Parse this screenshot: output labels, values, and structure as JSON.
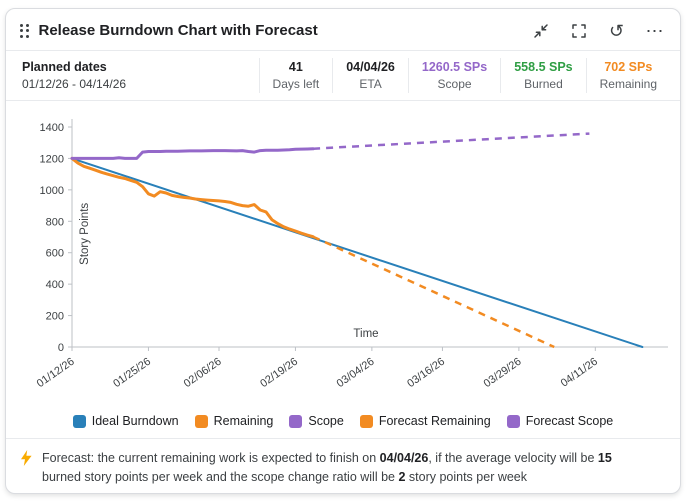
{
  "header": {
    "title": "Release Burndown Chart with Forecast"
  },
  "toolbar": {
    "refresh_glyph": "↺",
    "more_glyph": "⋯",
    "icons": [
      "drag-handle-icon",
      "collapse-icon",
      "fullscreen-icon",
      "refresh-icon",
      "more-icon"
    ]
  },
  "stats": {
    "planned_label": "Planned dates",
    "planned_range": "01/12/26 - 04/14/26",
    "items": [
      {
        "value": "41",
        "label": "Days left",
        "color": "#202124"
      },
      {
        "value": "04/04/26",
        "label": "ETA",
        "color": "#202124"
      },
      {
        "value": "1260.5 SPs",
        "label": "Scope",
        "color": "#9468c9"
      },
      {
        "value": "558.5 SPs",
        "label": "Burned",
        "color": "#2f9e44"
      },
      {
        "value": "702 SPs",
        "label": "Remaining",
        "color": "#f28b22"
      }
    ]
  },
  "chart_data": {
    "type": "line",
    "title": "Release Burndown Chart with Forecast",
    "xlabel": "Time",
    "ylabel": "Story Points",
    "xlim": [
      0,
      100
    ],
    "ylim": [
      0,
      1400
    ],
    "yticks": [
      0,
      200,
      400,
      600,
      800,
      1000,
      1200,
      1400
    ],
    "x_start_date": "01/12/26",
    "grid": false,
    "legend_position": "bottom",
    "xticks": [
      {
        "day": 0,
        "label": "01/12/26"
      },
      {
        "day": 13,
        "label": "01/25/26"
      },
      {
        "day": 25,
        "label": "02/06/26"
      },
      {
        "day": 38,
        "label": "02/19/26"
      },
      {
        "day": 51,
        "label": "03/04/26"
      },
      {
        "day": 63,
        "label": "03/16/26"
      },
      {
        "day": 76,
        "label": "03/29/26"
      },
      {
        "day": 89,
        "label": "04/11/26"
      }
    ],
    "series": [
      {
        "name": "Ideal Burndown",
        "color": "#2980b9",
        "dash": false,
        "width": 2,
        "points": [
          [
            0,
            1200
          ],
          [
            97,
            0
          ]
        ]
      },
      {
        "name": "Remaining",
        "color": "#f28b22",
        "dash": false,
        "width": 3,
        "points": [
          [
            0,
            1200
          ],
          [
            1,
            1170
          ],
          [
            2,
            1150
          ],
          [
            3,
            1138
          ],
          [
            4,
            1125
          ],
          [
            5,
            1112
          ],
          [
            6,
            1100
          ],
          [
            7,
            1090
          ],
          [
            8,
            1080
          ],
          [
            9,
            1072
          ],
          [
            10,
            1060
          ],
          [
            11,
            1048
          ],
          [
            12,
            1020
          ],
          [
            13,
            975
          ],
          [
            14,
            960
          ],
          [
            15,
            988
          ],
          [
            16,
            980
          ],
          [
            17,
            965
          ],
          [
            18,
            958
          ],
          [
            19,
            952
          ],
          [
            20,
            948
          ],
          [
            21,
            942
          ],
          [
            22,
            938
          ],
          [
            23,
            935
          ],
          [
            24,
            932
          ],
          [
            25,
            930
          ],
          [
            26,
            926
          ],
          [
            27,
            920
          ],
          [
            28,
            908
          ],
          [
            29,
            900
          ],
          [
            30,
            896
          ],
          [
            31,
            906
          ],
          [
            32,
            872
          ],
          [
            33,
            860
          ],
          [
            34,
            810
          ],
          [
            35,
            785
          ],
          [
            36,
            765
          ],
          [
            37,
            750
          ],
          [
            38,
            738
          ],
          [
            39,
            724
          ],
          [
            40,
            712
          ],
          [
            41,
            702
          ]
        ]
      },
      {
        "name": "Scope",
        "color": "#9468c9",
        "dash": false,
        "width": 3,
        "points": [
          [
            0,
            1200
          ],
          [
            7,
            1200
          ],
          [
            8,
            1204
          ],
          [
            9,
            1200
          ],
          [
            11,
            1200
          ],
          [
            12,
            1240
          ],
          [
            13,
            1244
          ],
          [
            15,
            1244
          ],
          [
            16,
            1246
          ],
          [
            18,
            1246
          ],
          [
            20,
            1248
          ],
          [
            22,
            1248
          ],
          [
            24,
            1250
          ],
          [
            26,
            1250
          ],
          [
            28,
            1248
          ],
          [
            29,
            1250
          ],
          [
            30,
            1244
          ],
          [
            31,
            1240
          ],
          [
            32,
            1250
          ],
          [
            33,
            1252
          ],
          [
            35,
            1252
          ],
          [
            37,
            1255
          ],
          [
            38,
            1258
          ],
          [
            40,
            1260
          ],
          [
            41,
            1261
          ]
        ]
      },
      {
        "name": "Forecast Remaining",
        "color": "#f28b22",
        "dash": true,
        "width": 2.5,
        "points": [
          [
            41,
            702
          ],
          [
            82,
            0
          ]
        ]
      },
      {
        "name": "Forecast Scope",
        "color": "#9468c9",
        "dash": true,
        "width": 2.5,
        "points": [
          [
            41,
            1262
          ],
          [
            88,
            1358
          ]
        ]
      }
    ],
    "legend": [
      {
        "label": "Ideal Burndown",
        "color": "#2980b9"
      },
      {
        "label": "Remaining",
        "color": "#f28b22"
      },
      {
        "label": "Scope",
        "color": "#9468c9"
      },
      {
        "label": "Forecast Remaining",
        "color": "#f28b22"
      },
      {
        "label": "Forecast Scope",
        "color": "#9468c9"
      }
    ]
  },
  "footer": {
    "segments": [
      {
        "text": "Forecast: the current remaining work is expected to finish on ",
        "bold": false
      },
      {
        "text": "04/04/26",
        "bold": true
      },
      {
        "text": ", if the average velocity will be ",
        "bold": false
      },
      {
        "text": "15",
        "bold": true
      },
      {
        "text": " burned story points per week and the scope change ratio will be ",
        "bold": false
      },
      {
        "text": "2",
        "bold": true
      },
      {
        "text": " story points per week",
        "bold": false
      }
    ]
  }
}
